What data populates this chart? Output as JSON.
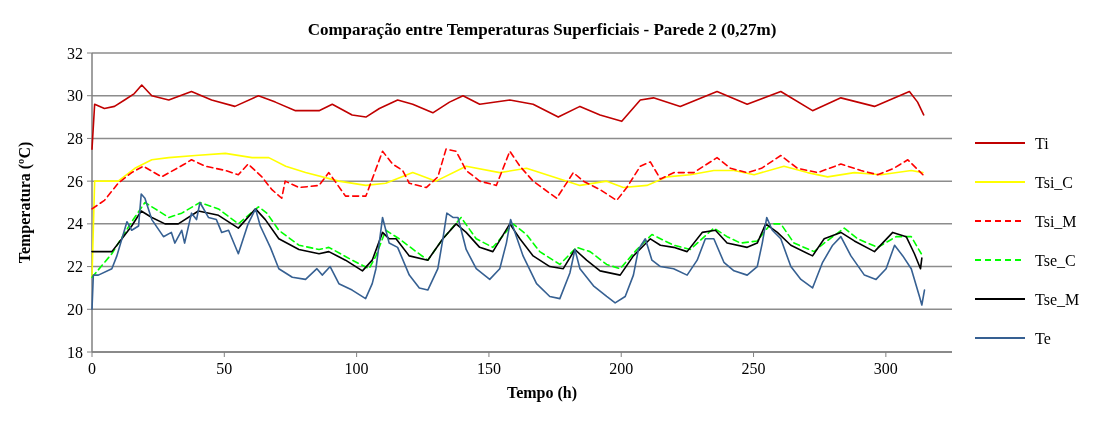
{
  "chart_data": {
    "type": "line",
    "title": "Comparação entre Temperaturas Superficiais - Parede 2 (0,27m)",
    "xlabel": "Tempo (h)",
    "ylabel": "Temperatura (ºC)",
    "xlim": [
      0,
      325
    ],
    "xticks": [
      0,
      50,
      100,
      150,
      200,
      250,
      300
    ],
    "ylim": [
      18,
      32
    ],
    "yticks": [
      18,
      20,
      22,
      24,
      26,
      28,
      30,
      32
    ],
    "grid": "y",
    "legend": "right",
    "marker": "none",
    "series": [
      {
        "name": "Ti",
        "color": "#c00000",
        "line_style": "solid",
        "x": [
          0,
          1,
          4.7,
          8.5,
          12.3,
          16,
          18.8,
          22.6,
          29,
          37.6,
          45.2,
          54,
          62.9,
          69.3,
          76.9,
          85.8,
          90.8,
          98.3,
          103.5,
          108.6,
          115.5,
          121.2,
          128.8,
          135.1,
          140.2,
          146.5,
          157.9,
          166.7,
          176.2,
          184.4,
          192,
          200.2,
          207.2,
          212.2,
          222.3,
          236.2,
          247.6,
          260.3,
          272.3,
          283,
          295.7,
          308.9,
          312,
          314.3
        ],
        "values": [
          27.5,
          29.6,
          29.4,
          29.5,
          29.8,
          30.1,
          30.5,
          30,
          29.8,
          30.2,
          29.8,
          29.5,
          30,
          29.7,
          29.3,
          29.3,
          29.6,
          29.1,
          29,
          29.4,
          29.8,
          29.6,
          29.2,
          29.7,
          30,
          29.6,
          29.8,
          29.6,
          29,
          29.5,
          29.1,
          28.8,
          29.8,
          29.9,
          29.5,
          30.2,
          29.6,
          30.2,
          29.3,
          29.9,
          29.5,
          30.2,
          29.7,
          29.1
        ]
      },
      {
        "name": "Tsi_C",
        "color": "#ffff00",
        "line_style": "solid",
        "x": [
          0,
          1,
          9.9,
          16.2,
          22.6,
          29,
          39,
          50.4,
          60.5,
          66.8,
          73.2,
          80.7,
          93.3,
          103.5,
          111,
          121.2,
          130,
          141.4,
          154.1,
          164.2,
          176.8,
          184.4,
          194.5,
          200.8,
          209.7,
          217.3,
          226.1,
          235,
          242.6,
          250.2,
          261.5,
          270.4,
          278,
          288.1,
          298.2,
          309.6,
          314
        ],
        "values": [
          21.5,
          26,
          26,
          26.6,
          27,
          27.1,
          27.2,
          27.3,
          27.1,
          27.1,
          26.7,
          26.4,
          26,
          25.8,
          25.9,
          26.4,
          26,
          26.7,
          26.4,
          26.6,
          26.1,
          25.8,
          26,
          25.7,
          25.8,
          26.2,
          26.3,
          26.5,
          26.5,
          26.3,
          26.7,
          26.4,
          26.2,
          26.4,
          26.3,
          26.5,
          26.4
        ]
      },
      {
        "name": "Tsi_M",
        "color": "#ff0000",
        "line_style": "dashed",
        "x": [
          0,
          4.7,
          9.9,
          15,
          19.4,
          26.3,
          35,
          37.6,
          42.8,
          50.4,
          55.3,
          59,
          64.2,
          68,
          71.7,
          73,
          78.2,
          85.8,
          89.5,
          95.8,
          103.5,
          109.8,
          113.6,
          117.4,
          119.9,
          126.3,
          130.7,
          133.8,
          137.6,
          141.4,
          146.5,
          152.8,
          157.9,
          161.7,
          166.7,
          175.6,
          181.9,
          185.7,
          192,
          198.3,
          202.1,
          207.2,
          211,
          214.8,
          220,
          227.4,
          236.2,
          241.3,
          247.6,
          253,
          260.3,
          266.6,
          274.2,
          283,
          290.6,
          296.9,
          303,
          308.3,
          314
        ],
        "values": [
          24.7,
          25.1,
          25.9,
          26.4,
          26.7,
          26.2,
          26.8,
          27,
          26.7,
          26.5,
          26.3,
          26.8,
          26.2,
          25.6,
          25.2,
          26,
          25.7,
          25.8,
          26.4,
          25.3,
          25.3,
          27.4,
          26.8,
          26.5,
          25.9,
          25.7,
          26.2,
          27.5,
          27.4,
          26.5,
          26,
          25.8,
          27.4,
          26.7,
          26,
          25.2,
          26.4,
          26,
          25.6,
          25.1,
          25.7,
          26.7,
          26.9,
          26.1,
          26.4,
          26.4,
          27.1,
          26.6,
          26.4,
          26.6,
          27.2,
          26.6,
          26.4,
          26.8,
          26.5,
          26.3,
          26.6,
          27,
          26.3
        ]
      },
      {
        "name": "Tse_C",
        "color": "#00ff00",
        "line_style": "dashed",
        "x": [
          0,
          7.5,
          15,
          20,
          23.9,
          29,
          33.9,
          40.8,
          47.8,
          55.3,
          62.9,
          66.1,
          70.6,
          78.2,
          85.8,
          89.5,
          98.3,
          104.7,
          107.3,
          111,
          116.1,
          122.5,
          126.9,
          132.6,
          139.5,
          145.2,
          151.5,
          159.1,
          164.2,
          169.2,
          176.8,
          183.1,
          188.2,
          194.5,
          199.6,
          205.9,
          211.6,
          219.8,
          226.1,
          235,
          240,
          245.1,
          251.4,
          256.5,
          260.3,
          265.3,
          272.9,
          276.7,
          284.3,
          289.3,
          296.9,
          303.9,
          309.6,
          313.4
        ],
        "values": [
          21.5,
          22.6,
          24.1,
          25,
          24.7,
          24.3,
          24.5,
          25,
          24.7,
          24,
          24.8,
          24.5,
          23.7,
          23,
          22.8,
          22.9,
          22.3,
          21.9,
          22.5,
          23.7,
          23.3,
          22.7,
          22.3,
          23.3,
          24.3,
          23.3,
          22.9,
          24,
          23.5,
          22.7,
          22.1,
          22.9,
          22.7,
          22.1,
          21.9,
          22.8,
          23.5,
          23,
          22.8,
          23.8,
          23.4,
          23.1,
          23.2,
          24,
          24,
          23.1,
          22.7,
          23.1,
          23.8,
          23.3,
          22.9,
          23.4,
          23.4,
          22.6
        ]
      },
      {
        "name": "Tse_M",
        "color": "#000000",
        "line_style": "solid",
        "x": [
          0,
          7.5,
          11.3,
          15,
          18.6,
          22.6,
          27.6,
          32.6,
          40.2,
          47.8,
          55.3,
          61.8,
          65.5,
          70.6,
          78.2,
          85.8,
          89.5,
          95.8,
          102.2,
          105.9,
          109.8,
          112.3,
          114.9,
          119.9,
          126.9,
          132.6,
          137.6,
          141.4,
          146.5,
          151.5,
          157.9,
          161.7,
          166.7,
          173,
          178.1,
          182.5,
          186.9,
          192,
          199.6,
          204.6,
          211,
          214.8,
          219.8,
          224.9,
          230.6,
          235.6,
          240,
          247.6,
          251.4,
          254.6,
          259,
          264.1,
          272.3,
          276.7,
          283,
          288.1,
          295.7,
          302.6,
          307.7,
          310.8,
          313.1,
          313.6
        ],
        "values": [
          22.7,
          22.7,
          23.3,
          23.9,
          24.6,
          24.3,
          24,
          24,
          24.6,
          24.4,
          23.8,
          24.7,
          24.2,
          23.3,
          22.8,
          22.6,
          22.7,
          22.3,
          21.8,
          22.3,
          23.6,
          23.3,
          23.3,
          22.5,
          22.3,
          23.3,
          24,
          23.6,
          22.9,
          22.7,
          24,
          23.3,
          22.5,
          22,
          21.9,
          22.8,
          22.3,
          21.8,
          21.6,
          22.5,
          23.3,
          23,
          22.9,
          22.7,
          23.6,
          23.7,
          23.1,
          22.9,
          23.1,
          24,
          23.6,
          23,
          22.5,
          23.3,
          23.6,
          23.2,
          22.7,
          23.6,
          23.4,
          22.6,
          21.9,
          22.4
        ]
      },
      {
        "name": "Te",
        "color": "#366092",
        "line_style": "solid",
        "x": [
          0,
          0.5,
          2.4,
          7.5,
          9.4,
          13.2,
          15,
          17.6,
          18.6,
          20,
          22.6,
          27,
          30,
          31.3,
          33.9,
          35,
          37.6,
          39.5,
          40.8,
          44,
          47,
          49,
          51.6,
          55.3,
          59,
          61.8,
          63.6,
          67.4,
          70.6,
          75.7,
          80.7,
          85,
          87,
          90,
          93.3,
          98.3,
          103.4,
          105.9,
          107.3,
          109.8,
          112.3,
          115.5,
          119.9,
          123.7,
          126.9,
          130.7,
          132.6,
          134.1,
          136.4,
          138.3,
          141.4,
          145.2,
          150.3,
          154.1,
          156.6,
          158.2,
          160.4,
          162.9,
          168,
          173,
          176.8,
          180.6,
          182.5,
          184.4,
          189.5,
          194.5,
          197.7,
          201.5,
          204.6,
          206.5,
          209.1,
          211.6,
          214.8,
          219.8,
          224.9,
          228.7,
          231.8,
          235,
          238.8,
          242.6,
          247.6,
          251.4,
          253.3,
          255,
          257.1,
          260.3,
          264.1,
          267.9,
          272.3,
          276.1,
          279.9,
          283,
          286.8,
          291.9,
          296.3,
          300.1,
          303.3,
          306.4,
          309.6,
          312.7,
          313.6,
          314.6
        ],
        "values": [
          20,
          21.6,
          21.6,
          21.9,
          22.5,
          24.1,
          23.7,
          23.9,
          25.4,
          25.2,
          24.2,
          23.4,
          23.6,
          23.1,
          23.7,
          23.1,
          24.5,
          24.2,
          25,
          24.3,
          24.2,
          23.6,
          23.7,
          22.6,
          24,
          24.7,
          23.9,
          22.9,
          21.9,
          21.5,
          21.4,
          21.9,
          21.6,
          22,
          21.2,
          20.9,
          20.5,
          21.2,
          21.9,
          24.3,
          23.1,
          22.9,
          21.6,
          21,
          20.9,
          21.9,
          23.3,
          24.5,
          24.3,
          24.3,
          22.8,
          21.9,
          21.4,
          21.9,
          23.1,
          24.2,
          23.4,
          22.5,
          21.2,
          20.6,
          20.5,
          21.7,
          22.8,
          21.9,
          21.1,
          20.6,
          20.3,
          20.6,
          21.6,
          22.8,
          23.3,
          22.3,
          22,
          21.9,
          21.6,
          22.3,
          23.3,
          23.3,
          22.2,
          21.8,
          21.6,
          22,
          23.1,
          24.3,
          23.7,
          23.3,
          22,
          21.4,
          21,
          22.2,
          23,
          23.4,
          22.5,
          21.6,
          21.4,
          21.9,
          23,
          22.5,
          21.9,
          20.6,
          20.2,
          20.9
        ]
      }
    ]
  }
}
